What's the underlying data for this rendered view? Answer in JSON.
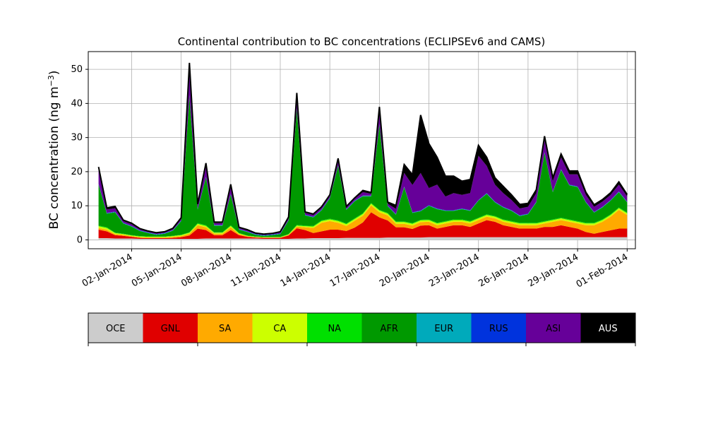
{
  "chart_data": {
    "type": "area",
    "stacked": true,
    "title": "Continental contribution to BC concentrations (ECLIPSEv6 and CAMS)",
    "ylabel": "BC concentration (ng m⁻³)",
    "ylabel_base": "BC concentration (ng m",
    "ylabel_exp": "−3",
    "ylabel_close": ")",
    "xlabel": "",
    "ylim": [
      -2.6,
      55.2
    ],
    "xlim": [
      "2013-12-30T09:00",
      "2014-02-01T12:00"
    ],
    "grid": true,
    "legend_position": "below",
    "x_ticks": [
      "02-Jan-2014",
      "05-Jan-2014",
      "08-Jan-2014",
      "11-Jan-2014",
      "14-Jan-2014",
      "17-Jan-2014",
      "20-Jan-2014",
      "23-Jan-2014",
      "26-Jan-2014",
      "29-Jan-2014",
      "01-Feb-2014"
    ],
    "x_tick_dates": [
      "2014-01-02",
      "2014-01-05",
      "2014-01-08",
      "2014-01-11",
      "2014-01-14",
      "2014-01-17",
      "2014-01-20",
      "2014-01-23",
      "2014-01-26",
      "2014-01-29",
      "2014-02-01"
    ],
    "y_ticks": [
      0,
      10,
      20,
      30,
      40,
      50
    ],
    "x": [
      "2013-12-31T00:00",
      "2013-12-31T12:00",
      "2014-01-01T00:00",
      "2014-01-01T12:00",
      "2014-01-02T00:00",
      "2014-01-02T12:00",
      "2014-01-03T00:00",
      "2014-01-03T12:00",
      "2014-01-04T00:00",
      "2014-01-04T12:00",
      "2014-01-05T00:00",
      "2014-01-05T12:00",
      "2014-01-06T00:00",
      "2014-01-06T12:00",
      "2014-01-07T00:00",
      "2014-01-07T12:00",
      "2014-01-08T00:00",
      "2014-01-08T12:00",
      "2014-01-09T00:00",
      "2014-01-09T12:00",
      "2014-01-10T00:00",
      "2014-01-10T12:00",
      "2014-01-11T00:00",
      "2014-01-11T12:00",
      "2014-01-12T00:00",
      "2014-01-12T12:00",
      "2014-01-13T00:00",
      "2014-01-13T12:00",
      "2014-01-14T00:00",
      "2014-01-14T12:00",
      "2014-01-15T00:00",
      "2014-01-15T12:00",
      "2014-01-16T00:00",
      "2014-01-16T12:00",
      "2014-01-17T00:00",
      "2014-01-17T12:00",
      "2014-01-18T00:00",
      "2014-01-18T12:00",
      "2014-01-19T00:00",
      "2014-01-19T12:00",
      "2014-01-20T00:00",
      "2014-01-20T12:00",
      "2014-01-21T00:00",
      "2014-01-21T12:00",
      "2014-01-22T00:00",
      "2014-01-22T12:00",
      "2014-01-23T00:00",
      "2014-01-23T12:00",
      "2014-01-24T00:00",
      "2014-01-24T12:00",
      "2014-01-25T00:00",
      "2014-01-25T12:00",
      "2014-01-26T00:00",
      "2014-01-26T12:00",
      "2014-01-27T00:00",
      "2014-01-27T12:00",
      "2014-01-28T00:00",
      "2014-01-28T12:00",
      "2014-01-29T00:00",
      "2014-01-29T12:00",
      "2014-01-30T00:00",
      "2014-01-30T12:00",
      "2014-01-31T00:00",
      "2014-01-31T12:00",
      "2014-02-01T00:00"
    ],
    "series": [
      {
        "name": "OCE",
        "color": "#cccccc",
        "values": [
          0.5,
          0.5,
          0.4,
          0.4,
          0.4,
          0.3,
          0.3,
          0.3,
          0.3,
          0.3,
          0.3,
          0.3,
          0.3,
          0.4,
          0.4,
          0.4,
          0.4,
          0.4,
          0.4,
          0.4,
          0.3,
          0.3,
          0.3,
          0.3,
          0.4,
          0.4,
          0.5,
          0.5,
          0.5,
          0.5,
          0.6,
          0.6,
          0.6,
          0.6,
          0.6,
          0.7,
          0.7,
          0.7,
          0.7,
          0.7,
          0.8,
          0.8,
          0.8,
          0.8,
          0.8,
          0.8,
          0.8,
          0.8,
          0.8,
          0.8,
          0.8,
          0.8,
          0.8,
          0.8,
          0.8,
          0.8,
          0.8,
          0.8,
          0.8,
          0.8,
          0.8,
          0.8,
          0.8,
          0.8,
          0.8
        ]
      },
      {
        "name": "GNL",
        "color": "#e00000",
        "values": [
          2.5,
          2.0,
          1.0,
          0.8,
          0.5,
          0.3,
          0.2,
          0.2,
          0.2,
          0.3,
          0.5,
          1.0,
          3.0,
          2.5,
          1.0,
          1.0,
          2.5,
          1.0,
          0.5,
          0.3,
          0.3,
          0.3,
          0.3,
          1.0,
          3.0,
          2.5,
          1.5,
          2.0,
          2.5,
          2.5,
          2.0,
          3.0,
          4.5,
          7.5,
          6.0,
          5.0,
          3.0,
          3.0,
          2.5,
          3.5,
          3.5,
          2.5,
          3.0,
          3.5,
          3.5,
          3.0,
          4.0,
          5.0,
          4.5,
          3.5,
          3.0,
          2.5,
          2.5,
          2.5,
          3.0,
          3.0,
          3.5,
          3.0,
          2.5,
          1.5,
          1.0,
          1.5,
          2.0,
          2.5,
          2.5
        ]
      },
      {
        "name": "SA",
        "color": "#ffaa00",
        "values": [
          0.5,
          0.5,
          0.3,
          0.3,
          0.2,
          0.2,
          0.2,
          0.2,
          0.2,
          0.3,
          0.3,
          0.5,
          1.0,
          0.8,
          0.4,
          0.4,
          0.8,
          0.3,
          0.2,
          0.1,
          0.1,
          0.1,
          0.1,
          0.2,
          0.5,
          0.8,
          1.5,
          2.5,
          2.5,
          2.0,
          1.5,
          2.0,
          2.0,
          2.0,
          1.5,
          1.5,
          1.0,
          1.0,
          1.0,
          1.0,
          1.0,
          1.0,
          1.0,
          1.0,
          1.0,
          1.0,
          1.0,
          1.0,
          1.0,
          1.0,
          1.0,
          1.0,
          1.0,
          1.0,
          1.0,
          1.5,
          1.5,
          1.5,
          1.5,
          2.0,
          2.5,
          3.0,
          4.0,
          5.5,
          4.0
        ]
      },
      {
        "name": "CA",
        "color": "#ccff00",
        "values": [
          0.5,
          0.5,
          0.3,
          0.2,
          0.2,
          0.2,
          0.2,
          0.2,
          0.2,
          0.2,
          0.3,
          0.3,
          0.4,
          0.4,
          0.3,
          0.3,
          0.4,
          0.2,
          0.1,
          0.1,
          0.1,
          0.1,
          0.1,
          0.1,
          0.3,
          0.3,
          0.4,
          0.5,
          0.5,
          0.5,
          0.5,
          0.5,
          0.5,
          0.5,
          0.5,
          0.5,
          0.5,
          0.5,
          0.5,
          0.5,
          0.5,
          0.5,
          0.5,
          0.5,
          0.5,
          0.5,
          0.5,
          0.5,
          0.5,
          0.5,
          0.5,
          0.5,
          0.5,
          0.5,
          0.5,
          0.5,
          0.5,
          0.5,
          0.5,
          0.5,
          0.5,
          0.5,
          0.5,
          0.5,
          0.5
        ]
      },
      {
        "name": "NA",
        "color": "#00e000",
        "values": [
          0.2,
          0.2,
          0.1,
          0.1,
          0.1,
          0.1,
          0.1,
          0.1,
          0.1,
          0.1,
          0.1,
          0.1,
          0.2,
          0.2,
          0.1,
          0.1,
          0.2,
          0.1,
          0.1,
          0.1,
          0.1,
          0.1,
          0.1,
          0.1,
          0.2,
          0.2,
          0.2,
          0.2,
          0.2,
          0.2,
          0.2,
          0.2,
          0.2,
          0.2,
          0.2,
          0.2,
          0.2,
          0.2,
          0.2,
          0.2,
          0.2,
          0.2,
          0.2,
          0.2,
          0.2,
          0.2,
          0.2,
          0.2,
          0.2,
          0.2,
          0.2,
          0.2,
          0.2,
          0.2,
          0.2,
          0.2,
          0.2,
          0.2,
          0.2,
          0.2,
          0.2,
          0.2,
          0.2,
          0.2,
          0.2
        ]
      },
      {
        "name": "AFR",
        "color": "#009900",
        "values": [
          12.0,
          4.0,
          6.0,
          3.0,
          2.5,
          1.5,
          1.0,
          0.5,
          0.8,
          1.5,
          4.0,
          40.0,
          4.0,
          14.0,
          2.0,
          2.0,
          9.0,
          1.0,
          1.0,
          0.5,
          0.3,
          0.5,
          0.8,
          4.0,
          34.0,
          3.0,
          2.5,
          3.0,
          6.0,
          16.0,
          4.0,
          5.0,
          5.0,
          2.0,
          25.0,
          2.0,
          2.0,
          10.0,
          3.0,
          2.5,
          4.0,
          4.0,
          3.0,
          2.5,
          3.0,
          3.0,
          5.0,
          6.0,
          4.0,
          3.5,
          3.0,
          2.0,
          2.5,
          6.0,
          20.0,
          8.0,
          14.0,
          10.0,
          10.0,
          6.0,
          3.0,
          3.5,
          4.0,
          4.5,
          3.0
        ]
      },
      {
        "name": "EUR",
        "color": "#00aabb",
        "values": [
          0.1,
          0.1,
          0.1,
          0.1,
          0.1,
          0.1,
          0.1,
          0.1,
          0.1,
          0.1,
          0.1,
          0.1,
          0.1,
          0.1,
          0.1,
          0.1,
          0.1,
          0.1,
          0.1,
          0.1,
          0.1,
          0.1,
          0.1,
          0.1,
          0.1,
          0.1,
          0.1,
          0.1,
          0.1,
          0.1,
          0.1,
          0.1,
          0.1,
          0.1,
          0.1,
          0.1,
          0.1,
          0.1,
          0.1,
          0.1,
          0.1,
          0.1,
          0.1,
          0.1,
          0.1,
          0.1,
          0.1,
          0.1,
          0.1,
          0.1,
          0.1,
          0.1,
          0.1,
          0.1,
          0.1,
          0.1,
          0.1,
          0.1,
          0.1,
          0.1,
          0.1,
          0.1,
          0.1,
          0.1,
          0.1
        ]
      },
      {
        "name": "RUS",
        "color": "#0033dd",
        "values": [
          0.1,
          0.1,
          0.1,
          0.1,
          0.1,
          0.1,
          0.1,
          0.1,
          0.1,
          0.1,
          0.1,
          0.1,
          0.1,
          0.1,
          0.1,
          0.1,
          0.1,
          0.1,
          0.1,
          0.1,
          0.1,
          0.1,
          0.1,
          0.1,
          0.1,
          0.1,
          0.1,
          0.1,
          0.1,
          0.1,
          0.1,
          0.1,
          0.1,
          0.1,
          0.1,
          0.1,
          0.1,
          0.1,
          0.1,
          0.1,
          0.1,
          0.1,
          0.1,
          0.1,
          0.1,
          0.1,
          0.1,
          0.1,
          0.1,
          0.1,
          0.1,
          0.1,
          0.1,
          0.1,
          0.1,
          0.1,
          0.1,
          0.1,
          0.1,
          0.1,
          0.1,
          0.1,
          0.1,
          0.1,
          0.1
        ]
      },
      {
        "name": "ASI",
        "color": "#660099",
        "values": [
          4.0,
          1.0,
          1.0,
          0.5,
          0.5,
          0.3,
          0.2,
          0.2,
          0.2,
          0.3,
          0.5,
          8.0,
          1.0,
          3.0,
          0.5,
          0.5,
          2.0,
          0.3,
          0.3,
          0.2,
          0.2,
          0.2,
          0.3,
          0.5,
          3.0,
          0.5,
          0.5,
          0.5,
          0.5,
          1.5,
          0.5,
          0.5,
          1.0,
          0.5,
          3.5,
          0.5,
          1.5,
          4.0,
          8.0,
          11.0,
          5.0,
          7.0,
          4.0,
          5.0,
          4.0,
          5.0,
          13.0,
          8.0,
          5.0,
          4.0,
          3.0,
          2.0,
          2.0,
          2.5,
          3.5,
          3.0,
          3.5,
          3.0,
          3.5,
          2.0,
          1.5,
          1.5,
          1.5,
          2.0,
          1.5
        ]
      },
      {
        "name": "AUS",
        "color": "#000000",
        "values": [
          1.0,
          0.5,
          0.5,
          0.3,
          0.3,
          0.2,
          0.2,
          0.2,
          0.2,
          0.2,
          0.3,
          1.5,
          0.4,
          1.0,
          0.3,
          0.3,
          0.8,
          0.2,
          0.2,
          0.1,
          0.1,
          0.1,
          0.2,
          0.3,
          1.5,
          0.3,
          0.3,
          0.3,
          0.3,
          0.5,
          0.3,
          0.3,
          0.5,
          0.4,
          1.5,
          0.5,
          1.0,
          2.5,
          3.0,
          17.0,
          13.0,
          8.0,
          6.0,
          5.0,
          4.0,
          4.0,
          3.0,
          2.5,
          2.0,
          2.0,
          1.5,
          1.2,
          1.0,
          1.0,
          1.2,
          1.0,
          1.0,
          1.0,
          1.0,
          0.8,
          0.6,
          0.6,
          0.6,
          0.8,
          0.6
        ]
      }
    ]
  }
}
